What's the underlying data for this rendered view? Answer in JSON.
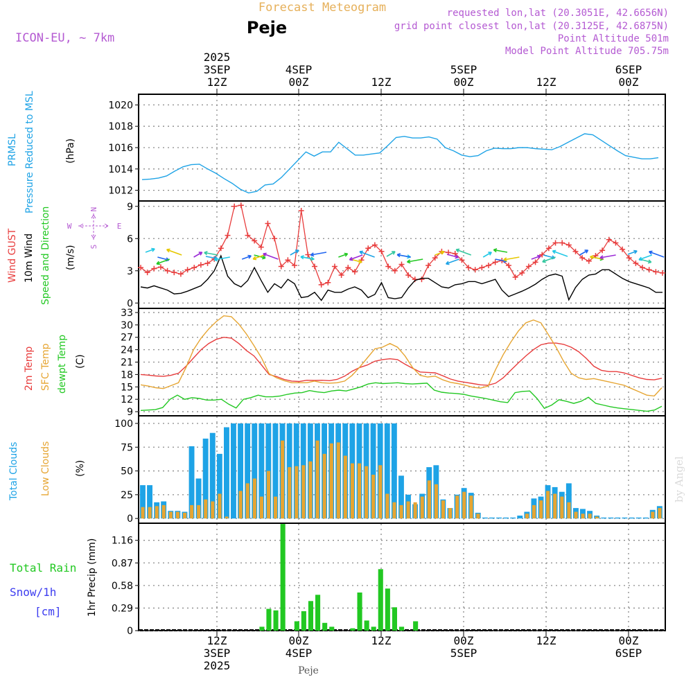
{
  "header": {
    "title": "Forecast Meteogram",
    "location": "Peje",
    "model": "ICON-EU, ~ 7km",
    "requested": "requested lon,lat (20.3051E, 42.6656N)",
    "gridpoint": "grid point closest lon,lat (20.3125E, 42.6875N)",
    "point_alt": "Point Altitude 501m",
    "model_alt": "Model Point Altitude 705.75m",
    "footer_location": "Peje",
    "watermark": "by Angel"
  },
  "colors": {
    "blue": "#1ea3e6",
    "red": "#e83c3c",
    "orange": "#e6a532",
    "green": "#22c822",
    "black": "#000000",
    "purple": "#b45ad2",
    "snow": "#3c3cf0",
    "grid": "#888888"
  },
  "top_axis": {
    "groups": [
      {
        "lines": [
          "2025",
          "3SEP",
          "12Z"
        ]
      },
      {
        "lines": [
          "4SEP",
          "00Z"
        ]
      },
      {
        "lines": [
          "12Z"
        ]
      },
      {
        "lines": [
          "5SEP",
          "00Z"
        ]
      },
      {
        "lines": [
          "12Z"
        ]
      },
      {
        "lines": [
          "6SEP",
          "00Z"
        ]
      }
    ]
  },
  "bottom_axis": {
    "groups": [
      {
        "lines": [
          "12Z",
          "3SEP",
          "2025"
        ]
      },
      {
        "lines": [
          "00Z",
          "4SEP"
        ]
      },
      {
        "lines": [
          "12Z"
        ]
      },
      {
        "lines": [
          "00Z",
          "5SEP"
        ]
      },
      {
        "lines": [
          "12Z"
        ]
      },
      {
        "lines": [
          "00Z",
          "6SEP"
        ]
      }
    ]
  },
  "labels": {
    "prmsl_1": "PRMSL",
    "prmsl_2": "Pressure Reduced to MSL",
    "prmsl_unit": "(hPa)",
    "wind_1": "Wind GUST",
    "wind_2": "10m Wind",
    "wind_3": "Speed and Direction",
    "wind_unit": "(m/s)",
    "compass_n": "N",
    "compass_s": "S",
    "compass_w": "W",
    "compass_e": "E",
    "temp_1": "2m Temp",
    "temp_2": "SFC Temp",
    "temp_3": "dewpt Temp",
    "temp_unit": "(C)",
    "cloud_1": "Total Clouds",
    "cloud_2": "Low Clouds",
    "cloud_unit": "(%)",
    "rain_1": "Total  Rain",
    "rain_2": "Snow/1h",
    "rain_3": "[cm]",
    "rain_unit": "1hr Precip (mm)"
  },
  "chart_data": [
    {
      "type": "line",
      "title": "PRMSL Pressure Reduced to MSL",
      "ylabel": "(hPa)",
      "ylim": [
        1011,
        1021
      ],
      "yticks": [
        1012,
        1014,
        1016,
        1018,
        1020
      ],
      "x_start_hour": 0,
      "x_end_hour": 64,
      "x_step_hours": 1,
      "x_tick_labels": [
        "3SEP 12Z",
        "4SEP 00Z",
        "12Z",
        "5SEP 00Z",
        "12Z",
        "6SEP 00Z"
      ],
      "x_tick_hours": [
        9.5,
        19.5,
        29.5,
        39.5,
        49.5,
        59.5
      ],
      "series": [
        {
          "name": "PRMSL",
          "color": "#1ea3e6",
          "values": [
            1013.0,
            1013.05,
            1013.15,
            1013.35,
            1013.8,
            1014.2,
            1014.4,
            1014.45,
            1014.0,
            1013.6,
            1013.1,
            1012.65,
            1012.1,
            1011.75,
            1011.9,
            1012.5,
            1012.6,
            1013.2,
            1014.0,
            1014.8,
            1015.6,
            1015.2,
            1015.6,
            1015.6,
            1016.5,
            1015.9,
            1015.3,
            1015.3,
            1015.4,
            1015.5,
            1016.2,
            1016.95,
            1017.05,
            1016.9,
            1016.9,
            1017.0,
            1016.8,
            1016.0,
            1015.7,
            1015.3,
            1015.15,
            1015.25,
            1015.7,
            1015.95,
            1015.9,
            1015.9,
            1016.0,
            1016.0,
            1015.9,
            1015.85,
            1015.8,
            1016.1,
            1016.5,
            1016.9,
            1017.3,
            1017.2,
            1016.7,
            1016.2,
            1015.7,
            1015.25,
            1015.1,
            1014.95,
            1014.95,
            1015.05
          ]
        }
      ]
    },
    {
      "type": "line",
      "title": "Wind GUST / 10m Wind Speed and Direction",
      "ylabel": "(m/s)",
      "ylim": [
        -0.5,
        9.5
      ],
      "yticks": [
        0,
        3,
        6,
        9
      ],
      "series": [
        {
          "name": "Wind GUST",
          "color": "#e83c3c",
          "values": [
            3.3,
            2.85,
            3.2,
            3.35,
            3.0,
            2.85,
            2.7,
            3.1,
            3.3,
            3.55,
            3.7,
            4.1,
            5.1,
            6.3,
            9.0,
            9.1,
            6.3,
            5.8,
            5.2,
            7.4,
            6.0,
            3.4,
            4.0,
            3.5,
            8.6,
            4.5,
            3.4,
            1.7,
            1.9,
            3.4,
            2.6,
            3.3,
            2.9,
            4.0,
            5.1,
            5.4,
            4.8,
            3.4,
            3.0,
            3.6,
            2.6,
            2.2,
            2.2,
            3.5,
            4.2,
            4.8,
            4.7,
            4.6,
            4.0,
            3.3,
            3.1,
            3.3,
            3.5,
            3.8,
            3.95,
            3.5,
            2.4,
            2.8,
            3.4,
            3.8,
            4.5,
            5.1,
            5.6,
            5.6,
            5.4,
            4.8,
            4.2,
            3.9,
            4.4,
            4.9,
            5.9,
            5.6,
            5.0,
            4.2,
            3.7,
            3.3,
            3.1,
            2.9,
            2.8
          ]
        },
        {
          "name": "10m Wind",
          "color": "#000000",
          "values": [
            1.5,
            1.4,
            1.6,
            1.4,
            1.2,
            0.85,
            0.9,
            1.1,
            1.35,
            1.6,
            2.2,
            3.0,
            4.4,
            2.5,
            1.8,
            1.5,
            2.1,
            3.3,
            2.1,
            1.0,
            1.8,
            1.4,
            2.2,
            1.8,
            0.5,
            0.6,
            1.0,
            0.25,
            1.2,
            1.0,
            1.0,
            1.3,
            1.5,
            1.2,
            0.5,
            0.8,
            1.9,
            0.5,
            0.4,
            0.5,
            1.4,
            2.1,
            2.3,
            2.3,
            1.9,
            1.5,
            1.4,
            1.7,
            1.8,
            2.0,
            2.0,
            1.8,
            2.0,
            2.2,
            1.2,
            0.6,
            0.85,
            1.1,
            1.4,
            1.75,
            2.2,
            2.55,
            2.7,
            2.5,
            0.3,
            1.45,
            2.2,
            2.6,
            2.7,
            3.1,
            3.1,
            2.7,
            2.3,
            2.0,
            1.8,
            1.6,
            1.4,
            1.0,
            1.0
          ]
        }
      ]
    },
    {
      "type": "line",
      "title": "2m Temp / SFC Temp / dewpt Temp",
      "ylabel": "(C)",
      "ylim": [
        8,
        34
      ],
      "yticks": [
        9,
        12,
        15,
        18,
        21,
        24,
        27,
        30,
        33
      ],
      "series": [
        {
          "name": "2m Temp",
          "color": "#e83c3c",
          "values": [
            18.0,
            17.85,
            17.65,
            17.55,
            17.8,
            18.3,
            20.0,
            22.0,
            24.0,
            25.5,
            26.5,
            27.0,
            26.8,
            25.5,
            23.8,
            22.5,
            20.3,
            18.0,
            17.5,
            16.8,
            16.4,
            16.3,
            16.6,
            16.55,
            16.6,
            16.5,
            16.8,
            17.6,
            18.8,
            19.7,
            20.3,
            21.2,
            21.6,
            21.8,
            21.6,
            20.5,
            19.5,
            18.6,
            18.5,
            18.4,
            17.7,
            16.9,
            16.4,
            16.1,
            15.8,
            15.5,
            15.4,
            15.9,
            17.2,
            19.0,
            20.8,
            22.5,
            24.0,
            25.2,
            25.6,
            25.6,
            25.3,
            24.6,
            23.5,
            21.9,
            20.0,
            19.0,
            18.7,
            18.7,
            18.4,
            17.8,
            17.2,
            16.8,
            16.7,
            17.1
          ]
        },
        {
          "name": "SFC Temp",
          "color": "#e6a532",
          "values": [
            15.5,
            15.2,
            14.8,
            14.6,
            15.3,
            16.0,
            19.7,
            24.0,
            26.8,
            29.0,
            30.8,
            32.2,
            32.0,
            30.2,
            27.8,
            25.0,
            22.0,
            18.2,
            17.2,
            16.5,
            16.0,
            16.0,
            16.0,
            16.4,
            16.0,
            15.9,
            16.0,
            16.4,
            17.8,
            19.8,
            22.0,
            24.2,
            24.6,
            25.5,
            24.6,
            22.5,
            19.7,
            17.8,
            17.4,
            17.6,
            16.7,
            16.1,
            15.8,
            15.4,
            14.9,
            14.7,
            15.2,
            19.2,
            22.8,
            25.8,
            28.5,
            30.5,
            31.2,
            30.5,
            27.6,
            24.6,
            21.2,
            18.3,
            17.2,
            16.8,
            17.0,
            16.6,
            16.2,
            15.8,
            15.4,
            14.6,
            13.8,
            13.0,
            12.8,
            14.8
          ]
        },
        {
          "name": "dewpt Temp",
          "color": "#22c822",
          "values": [
            9.3,
            9.4,
            9.5,
            10.0,
            12.0,
            13.0,
            12.0,
            12.4,
            12.2,
            11.8,
            11.8,
            12.0,
            10.8,
            9.9,
            12.0,
            12.4,
            13.0,
            12.6,
            12.6,
            12.8,
            13.2,
            13.5,
            13.6,
            14.1,
            13.8,
            13.6,
            14.0,
            14.2,
            14.0,
            14.5,
            15.0,
            15.7,
            16.0,
            15.8,
            15.9,
            16.0,
            15.8,
            15.7,
            15.8,
            15.9,
            14.2,
            13.7,
            13.5,
            13.4,
            13.2,
            12.8,
            12.5,
            12.2,
            11.8,
            11.4,
            11.2,
            13.6,
            13.9,
            14.0,
            12.2,
            9.8,
            10.6,
            11.9,
            11.5,
            11.0,
            11.5,
            12.5,
            11.0,
            10.6,
            10.2,
            9.9,
            9.7,
            9.5,
            9.3,
            9.1,
            9.4,
            10.3
          ]
        }
      ]
    },
    {
      "type": "bar",
      "title": "Total Clouds / Low Clouds",
      "ylabel": "(%)",
      "ylim": [
        -5,
        108
      ],
      "yticks": [
        0,
        25,
        50,
        75,
        100
      ],
      "series": [
        {
          "name": "Total Clouds",
          "color": "#1ea3e6",
          "values": [
            35,
            35,
            17,
            18,
            8,
            8,
            7,
            76,
            42,
            84,
            90,
            68,
            96,
            100,
            100,
            100,
            100,
            100,
            100,
            100,
            100,
            100,
            100,
            100,
            100,
            100,
            100,
            100,
            100,
            100,
            100,
            100,
            100,
            100,
            100,
            100,
            100,
            45,
            25,
            15,
            26,
            54,
            56,
            20,
            11,
            25,
            32,
            27,
            6,
            1,
            1,
            1,
            1,
            1,
            3,
            7,
            21,
            23,
            35,
            33,
            28,
            37,
            11,
            10,
            8,
            3,
            1,
            1,
            1,
            1,
            1,
            1,
            1,
            9,
            13
          ]
        },
        {
          "name": "Low Clouds",
          "color": "#e6a532",
          "values": [
            12,
            12,
            13,
            14,
            7,
            7,
            6,
            14,
            14,
            20,
            18,
            26,
            2,
            0,
            29,
            37,
            42,
            23,
            50,
            23,
            82,
            54,
            55,
            56,
            60,
            82,
            68,
            79,
            80,
            66,
            58,
            58,
            55,
            46,
            56,
            26,
            17,
            14,
            18,
            17,
            23,
            40,
            36,
            19,
            11,
            24,
            28,
            24,
            5,
            0,
            0,
            0,
            0,
            0,
            0,
            5,
            14,
            19,
            29,
            26,
            23,
            17,
            7,
            5,
            5,
            2,
            0,
            0,
            0,
            0,
            0,
            0,
            0,
            7,
            11
          ]
        }
      ]
    },
    {
      "type": "bar",
      "title": "1hr Precip",
      "ylabel": "1hr Precip (mm)",
      "ylim": [
        0,
        1.38
      ],
      "yticks": [
        0,
        0.29,
        0.58,
        0.87,
        1.16
      ],
      "series": [
        {
          "name": "Total Rain",
          "color": "#22c822",
          "values": [
            0,
            0,
            0,
            0,
            0,
            0,
            0,
            0,
            0,
            0,
            0,
            0,
            0,
            0,
            0,
            0,
            0,
            0.05,
            0.28,
            0.26,
            1.37,
            0,
            0.12,
            0.25,
            0.38,
            0.46,
            0.1,
            0.05,
            0,
            0,
            0.03,
            0.49,
            0.13,
            0.05,
            0.79,
            0.54,
            0.3,
            0.05,
            0,
            0.12,
            0,
            0,
            0,
            0,
            0,
            0,
            0,
            0,
            0,
            0,
            0,
            0,
            0,
            0,
            0,
            0,
            0,
            0,
            0,
            0,
            0,
            0,
            0,
            0,
            0,
            0,
            0,
            0,
            0,
            0,
            0,
            0,
            0,
            0,
            0
          ]
        }
      ]
    }
  ]
}
